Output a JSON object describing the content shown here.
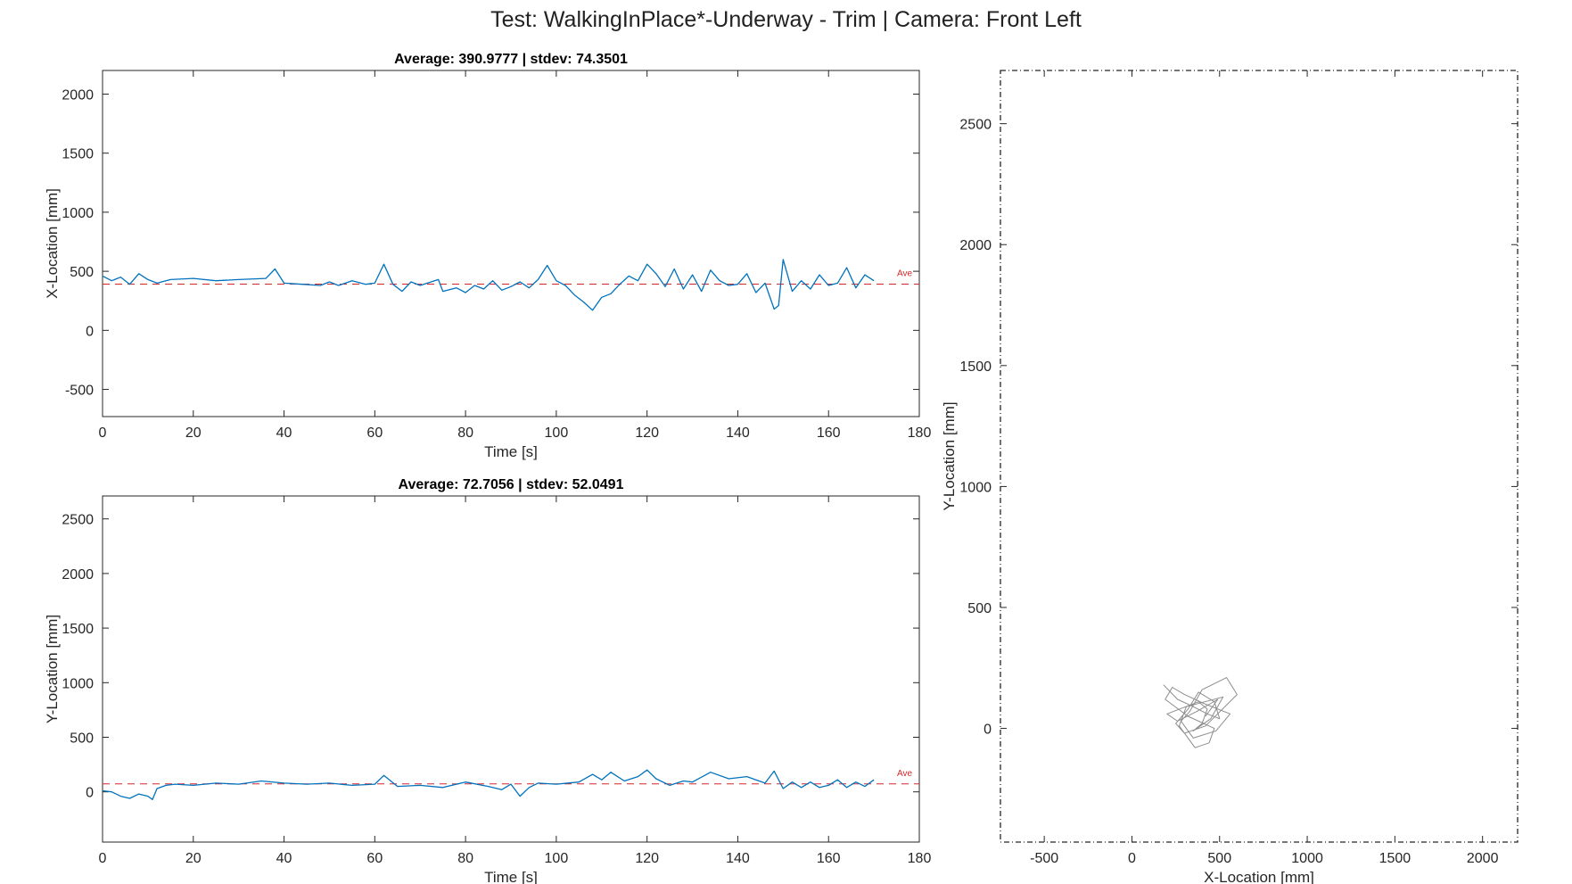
{
  "figure_title": "Test: WalkingInPlace*-Underway - Trim  |  Camera: Front Left",
  "chart_data": [
    {
      "type": "line",
      "title": "Average: 390.9777  |  stdev: 74.3501",
      "xlabel": "Time [s]",
      "ylabel": "X-Location [mm]",
      "xlim": [
        0,
        180
      ],
      "ylim": [
        -730,
        2200
      ],
      "xticks": [
        0,
        20,
        40,
        60,
        80,
        100,
        120,
        140,
        160,
        180
      ],
      "yticks": [
        -500,
        0,
        500,
        1000,
        1500,
        2000
      ],
      "average": 390.9777,
      "average_label": "Ave",
      "series": [
        {
          "color": "#0072bd",
          "x": [
            0,
            2,
            4,
            6,
            8,
            10,
            12,
            15,
            20,
            25,
            30,
            36,
            38,
            40,
            44,
            48,
            50,
            52,
            55,
            58,
            60,
            62,
            64,
            66,
            68,
            70,
            74,
            75,
            78,
            80,
            82,
            84,
            86,
            88,
            90,
            92,
            94,
            96,
            98,
            100,
            102,
            104,
            106,
            108,
            110,
            112,
            114,
            116,
            118,
            120,
            122,
            124,
            126,
            128,
            130,
            132,
            134,
            136,
            138,
            140,
            142,
            144,
            146,
            148,
            149,
            150,
            152,
            154,
            156,
            158,
            160,
            162,
            164,
            166,
            168,
            170
          ],
          "y": [
            460,
            420,
            450,
            390,
            480,
            430,
            400,
            430,
            440,
            420,
            430,
            440,
            520,
            400,
            390,
            380,
            410,
            380,
            420,
            390,
            400,
            560,
            390,
            330,
            410,
            380,
            430,
            330,
            360,
            320,
            380,
            350,
            420,
            340,
            370,
            410,
            360,
            430,
            550,
            420,
            380,
            300,
            240,
            170,
            280,
            310,
            390,
            460,
            420,
            560,
            480,
            370,
            520,
            350,
            470,
            330,
            510,
            420,
            380,
            390,
            480,
            320,
            400,
            180,
            210,
            600,
            330,
            420,
            350,
            470,
            380,
            400,
            530,
            360,
            470,
            420
          ]
        }
      ]
    },
    {
      "type": "line",
      "title": "Average: 72.7056  |  stdev: 52.0491",
      "xlabel": "Time [s]",
      "ylabel": "Y-Location [mm]",
      "xlim": [
        0,
        180
      ],
      "ylim": [
        -460,
        2710
      ],
      "xticks": [
        0,
        20,
        40,
        60,
        80,
        100,
        120,
        140,
        160,
        180
      ],
      "yticks": [
        0,
        500,
        1000,
        1500,
        2000,
        2500
      ],
      "average": 72.7056,
      "average_label": "Ave",
      "series": [
        {
          "color": "#0072bd",
          "x": [
            0,
            2,
            4,
            6,
            8,
            10,
            11,
            12,
            14,
            16,
            20,
            25,
            30,
            35,
            40,
            45,
            50,
            55,
            60,
            62,
            65,
            70,
            75,
            80,
            85,
            88,
            90,
            92,
            94,
            96,
            100,
            105,
            108,
            110,
            112,
            115,
            118,
            120,
            122,
            125,
            128,
            130,
            134,
            138,
            142,
            146,
            148,
            150,
            152,
            154,
            156,
            158,
            160,
            162,
            164,
            166,
            168,
            170
          ],
          "y": [
            10,
            0,
            -40,
            -60,
            -20,
            -40,
            -70,
            30,
            60,
            70,
            60,
            80,
            70,
            100,
            80,
            70,
            80,
            60,
            70,
            150,
            50,
            60,
            40,
            90,
            50,
            20,
            70,
            -40,
            40,
            80,
            70,
            90,
            160,
            110,
            180,
            100,
            140,
            200,
            120,
            60,
            100,
            90,
            180,
            120,
            140,
            80,
            190,
            30,
            90,
            40,
            90,
            40,
            60,
            110,
            40,
            90,
            50,
            110
          ]
        }
      ]
    },
    {
      "type": "line",
      "title": "",
      "xlabel": "X-Location [mm]",
      "ylabel": "Y-Location [mm]",
      "xlim": [
        -750,
        2200
      ],
      "ylim": [
        -470,
        2720
      ],
      "xticks": [
        -500,
        0,
        500,
        1000,
        1500,
        2000
      ],
      "yticks": [
        0,
        500,
        1000,
        1500,
        2000,
        2500
      ],
      "series": [
        {
          "color": "#000000",
          "x": [
            180,
            260,
            350,
            430,
            500,
            470,
            380,
            320,
            250,
            300,
            420,
            600,
            540,
            400,
            330,
            280,
            350,
            480,
            560,
            420,
            300,
            230,
            190,
            320,
            470,
            440,
            360,
            270,
            310,
            520,
            450,
            350,
            400,
            430,
            380,
            200,
            260,
            370,
            490,
            420
          ],
          "y": [
            180,
            120,
            90,
            60,
            40,
            110,
            150,
            80,
            20,
            -20,
            10,
            140,
            210,
            160,
            70,
            30,
            -40,
            -10,
            60,
            100,
            140,
            170,
            120,
            50,
            0,
            -60,
            -80,
            10,
            90,
            130,
            40,
            -10,
            20,
            80,
            110,
            60,
            30,
            70,
            120,
            50
          ]
        }
      ]
    }
  ]
}
